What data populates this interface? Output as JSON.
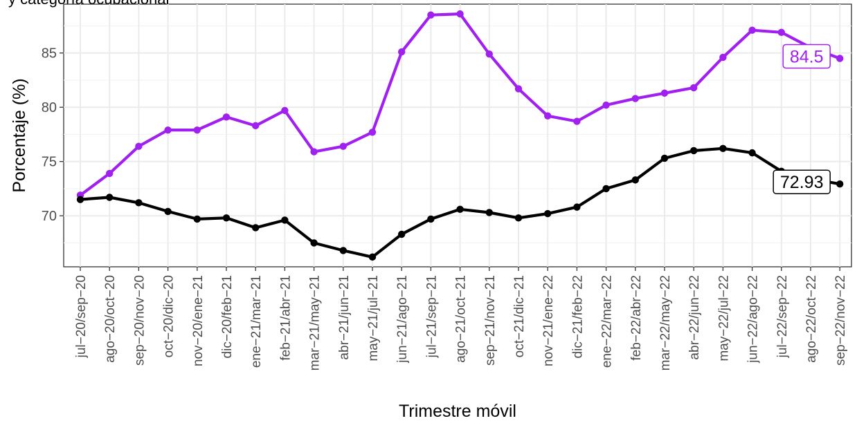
{
  "chart_data": {
    "type": "line",
    "title": "y categoría ocupacional",
    "xlabel": "Trimestre móvil",
    "ylabel": "Porcentaje (%)",
    "ylim": [
      65.3,
      89.5
    ],
    "yticks": [
      70,
      75,
      80,
      85
    ],
    "grid": true,
    "legend": "none",
    "categories": [
      "jul−20/sep−20",
      "ago−20/oct−20",
      "sep−20/nov−20",
      "oct−20/dic−20",
      "nov−20/ene−21",
      "dic−20/feb−21",
      "ene−21/mar−21",
      "feb−21/abr−21",
      "mar−21/may−21",
      "abr−21/jun−21",
      "may−21/jul−21",
      "jun−21/ago−21",
      "jul−21/sep−21",
      "ago−21/oct−21",
      "sep−21/nov−21",
      "oct−21/dic−21",
      "nov−21/ene−22",
      "dic−21/feb−22",
      "ene−22/mar−22",
      "feb−22/abr−22",
      "mar−22/may−22",
      "abr−22/jun−22",
      "may−22/jul−22",
      "jun−22/ago−22",
      "jul−22/sep−22",
      "ago−22/oct−22",
      "sep−22/nov−22"
    ],
    "series": [
      {
        "color": "#a020f0",
        "end_label": "84.5",
        "values": [
          71.9,
          73.9,
          76.4,
          77.9,
          77.9,
          79.1,
          78.3,
          79.7,
          75.9,
          76.4,
          77.7,
          85.1,
          88.5,
          88.6,
          84.9,
          81.7,
          79.2,
          78.7,
          80.2,
          80.8,
          81.3,
          81.8,
          84.6,
          87.1,
          86.9,
          85.5,
          84.5
        ]
      },
      {
        "color": "#000000",
        "end_label": "72.93",
        "values": [
          71.5,
          71.7,
          71.2,
          70.4,
          69.7,
          69.8,
          68.9,
          69.6,
          67.5,
          66.8,
          66.2,
          68.3,
          69.7,
          70.6,
          70.3,
          69.8,
          70.2,
          70.8,
          72.5,
          73.3,
          75.3,
          76.0,
          76.2,
          75.8,
          74.1,
          73.4,
          72.93
        ]
      }
    ]
  }
}
